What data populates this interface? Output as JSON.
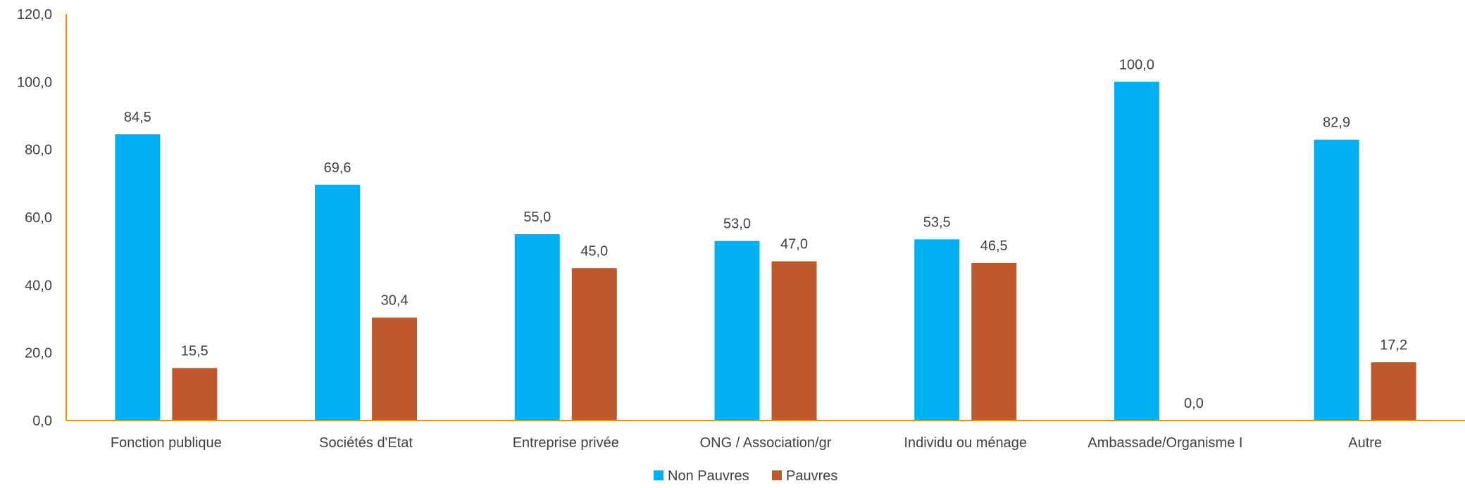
{
  "chart_data": {
    "type": "bar",
    "title": "",
    "xlabel": "",
    "ylabel": "",
    "ylim": [
      0,
      120
    ],
    "yticks": [
      "0,0",
      "20,0",
      "40,0",
      "60,0",
      "80,0",
      "100,0",
      "120,0"
    ],
    "ytick_values": [
      0,
      20,
      40,
      60,
      80,
      100,
      120
    ],
    "grid": false,
    "legend_position": "bottom",
    "axis_color": "#F39200",
    "categories": [
      "Fonction publique",
      "Sociétés d'Etat",
      "Entreprise privée",
      "ONG / Association/gr",
      "Individu ou ménage",
      "Ambassade/Organisme I",
      "Autre"
    ],
    "series": [
      {
        "name": "Non Pauvres",
        "color": "#00B0F0",
        "values": [
          84.5,
          69.6,
          55.0,
          53.0,
          53.5,
          100.0,
          82.9
        ],
        "labels": [
          "84,5",
          "69,6",
          "55,0",
          "53,0",
          "53,5",
          "100,0",
          "82,9"
        ]
      },
      {
        "name": "Pauvres",
        "color": "#BE582D",
        "values": [
          15.5,
          30.4,
          45.0,
          47.0,
          46.5,
          0.0,
          17.2
        ],
        "labels": [
          "15,5",
          "30,4",
          "45,0",
          "47,0",
          "46,5",
          "0,0",
          "17,2"
        ]
      }
    ]
  }
}
